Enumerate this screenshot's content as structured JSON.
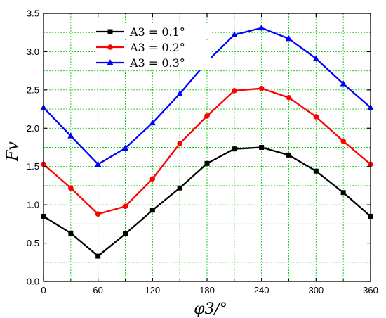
{
  "chart_data": {
    "type": "line",
    "title": "",
    "xlabel": "φ3/°",
    "ylabel": "Fv",
    "xlim": [
      0,
      360
    ],
    "ylim": [
      0,
      3.5
    ],
    "x_ticks": [
      0,
      60,
      120,
      180,
      240,
      300,
      360
    ],
    "y_ticks": [
      "0.0",
      "0.5",
      "1.0",
      "1.5",
      "2.0",
      "2.5",
      "3.0",
      "3.5"
    ],
    "grid": true,
    "legend_position": "top-left",
    "x": [
      0,
      30,
      60,
      90,
      120,
      150,
      180,
      210,
      240,
      270,
      300,
      330,
      360
    ],
    "series": [
      {
        "name": "A3 = 0.1°",
        "color": "#000000",
        "marker": "square",
        "values": [
          0.85,
          0.63,
          0.33,
          0.62,
          0.93,
          1.22,
          1.54,
          1.73,
          1.75,
          1.65,
          1.44,
          1.16,
          0.85
        ]
      },
      {
        "name": "A3 = 0.2°",
        "color": "#ff0000",
        "marker": "circle",
        "values": [
          1.53,
          1.22,
          0.88,
          0.98,
          1.34,
          1.8,
          2.16,
          2.49,
          2.52,
          2.4,
          2.15,
          1.83,
          1.53
        ]
      },
      {
        "name": "A3 = 0.3°",
        "color": "#0000ff",
        "marker": "triangle",
        "values": [
          2.27,
          1.9,
          1.53,
          1.74,
          2.07,
          2.45,
          2.87,
          3.22,
          3.31,
          3.17,
          2.91,
          2.58,
          2.27
        ]
      }
    ]
  }
}
